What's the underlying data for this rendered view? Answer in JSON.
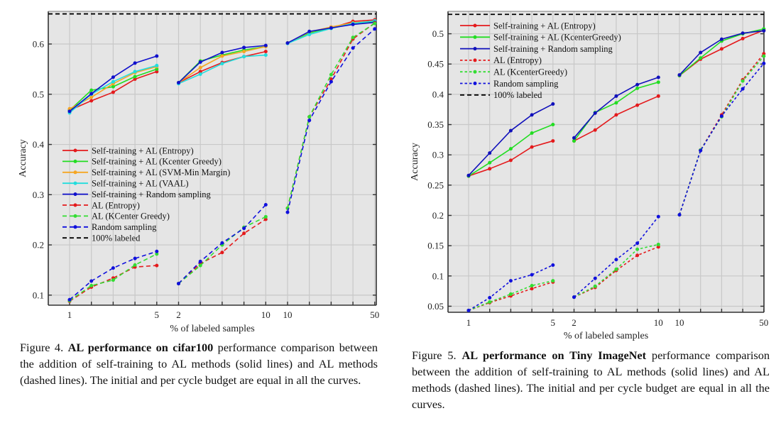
{
  "figures": [
    {
      "caption": {
        "prefix": "Figure 4. ",
        "bold": "AL performance on cifar100",
        "rest": " performance comparison between the addition of self-training to AL methods (solid lines) and AL methods (dashed lines).  The initial and per cycle budget are equal in all the curves."
      }
    },
    {
      "caption": {
        "prefix": "Figure 5. ",
        "bold": "AL performance on Tiny ImageNet",
        "rest": " performance comparison between the addition of self-training to AL methods (solid lines) and AL methods (dashed lines).  The initial and per cycle budget are equal in all the curves."
      }
    }
  ],
  "chart_data": [
    {
      "type": "line",
      "title": "AL performance on cifar100",
      "xlabel": "% of labeled samples",
      "ylabel": "Accuracy",
      "ylim": [
        0.08,
        0.665
      ],
      "yticks": [
        0.1,
        0.2,
        0.3,
        0.4,
        0.5,
        0.6
      ],
      "ytick_labels": [
        "0.1",
        "0.2",
        "0.3",
        "0.4",
        "0.5",
        "0.6"
      ],
      "grid": true,
      "legend_position": "center-left",
      "segments": [
        {
          "x": [
            1,
            2,
            3,
            4,
            5
          ],
          "tick_labels": [
            "1",
            "",
            "",
            "",
            "5"
          ]
        },
        {
          "x": [
            2,
            4,
            6,
            8,
            10
          ],
          "tick_labels": [
            "2",
            "",
            "",
            "",
            "10"
          ]
        },
        {
          "x": [
            10,
            20,
            30,
            40,
            50
          ],
          "tick_labels": [
            "10",
            "",
            "",
            "",
            "50"
          ]
        }
      ],
      "reference_line": {
        "name": "100% labeled",
        "value": 0.66,
        "color": "#000000",
        "style": "dashed"
      },
      "series": [
        {
          "name": "Self-training + AL (Entropy)",
          "color": "#e41a1c",
          "style": "solid",
          "values": [
            [
              0.468,
              0.487,
              0.504,
              0.53,
              0.545
            ],
            [
              0.523,
              0.545,
              0.563,
              0.575,
              0.585
            ],
            [
              0.602,
              0.623,
              0.632,
              0.645,
              0.648
            ]
          ]
        },
        {
          "name": "Self-training + AL (Kcenter Greedy)",
          "color": "#22dd22",
          "style": "solid",
          "values": [
            [
              0.468,
              0.508,
              0.515,
              0.535,
              0.55
            ],
            [
              0.523,
              0.566,
              0.578,
              0.588,
              0.595
            ],
            [
              0.602,
              0.622,
              0.633,
              0.64,
              0.645
            ]
          ]
        },
        {
          "name": "Self-training + AL (SVM-Min Margin)",
          "color": "#f5a623",
          "style": "solid",
          "values": [
            [
              0.471,
              0.494,
              0.521,
              0.543,
              0.555
            ],
            [
              0.523,
              0.553,
              0.576,
              0.585,
              0.595
            ],
            [
              0.602,
              0.624,
              0.634,
              0.642,
              0.646
            ]
          ]
        },
        {
          "name": "Self-training + AL (VAAL)",
          "color": "#22dddd",
          "style": "solid",
          "values": [
            [
              0.463,
              0.5,
              0.525,
              0.545,
              0.557
            ],
            [
              0.521,
              0.54,
              0.561,
              0.575,
              0.578
            ],
            [
              0.601,
              0.619,
              0.631,
              0.641,
              0.646
            ]
          ]
        },
        {
          "name": "Self-training + Random sampling",
          "color": "#1010cc",
          "style": "solid",
          "values": [
            [
              0.466,
              0.501,
              0.534,
              0.562,
              0.576
            ],
            [
              0.523,
              0.564,
              0.583,
              0.593,
              0.597
            ],
            [
              0.602,
              0.625,
              0.632,
              0.639,
              0.643
            ]
          ]
        },
        {
          "name": "AL (Entropy)",
          "color": "#e41a1c",
          "style": "dashed",
          "values": [
            [
              0.088,
              0.116,
              0.134,
              0.156,
              0.159
            ],
            [
              0.123,
              0.163,
              0.185,
              0.223,
              0.251
            ],
            [
              0.273,
              0.455,
              0.53,
              0.61,
              0.642
            ]
          ]
        },
        {
          "name": "AL (KCenter Greedy)",
          "color": "#33dd33",
          "style": "dashed",
          "values": [
            [
              0.089,
              0.119,
              0.13,
              0.16,
              0.182
            ],
            [
              0.123,
              0.159,
              0.2,
              0.235,
              0.256
            ],
            [
              0.273,
              0.455,
              0.539,
              0.613,
              0.641
            ]
          ]
        },
        {
          "name": "Random sampling",
          "color": "#1010dd",
          "style": "dashed",
          "values": [
            [
              0.091,
              0.128,
              0.154,
              0.173,
              0.187
            ],
            [
              0.123,
              0.167,
              0.204,
              0.233,
              0.28
            ],
            [
              0.265,
              0.448,
              0.525,
              0.592,
              0.63
            ]
          ]
        }
      ]
    },
    {
      "type": "line",
      "title": "AL performance on Tiny ImageNet",
      "xlabel": "% of labeled samples",
      "ylabel": "Accuracy",
      "ylim": [
        0.04,
        0.537
      ],
      "yticks": [
        0.05,
        0.1,
        0.15,
        0.2,
        0.25,
        0.3,
        0.35,
        0.4,
        0.45,
        0.5
      ],
      "ytick_labels": [
        "0.05",
        "0.1",
        "0.15",
        "0.2",
        "0.25",
        "0.3",
        "0.35",
        "0.4",
        "0.45",
        "0.5"
      ],
      "grid": true,
      "legend_position": "top-left",
      "segments": [
        {
          "x": [
            1,
            2,
            3,
            4,
            5
          ],
          "tick_labels": [
            "1",
            "",
            "",
            "",
            "5"
          ]
        },
        {
          "x": [
            2,
            4,
            6,
            8,
            10
          ],
          "tick_labels": [
            "2",
            "",
            "",
            "",
            "10"
          ]
        },
        {
          "x": [
            10,
            20,
            30,
            40,
            50
          ],
          "tick_labels": [
            "10",
            "",
            "",
            "",
            "50"
          ]
        }
      ],
      "reference_line": {
        "name": "100% labeled",
        "value": 0.532,
        "color": "#000000",
        "style": "dashed"
      },
      "series": [
        {
          "name": "Self-training + AL (Entropy)",
          "color": "#e41a1c",
          "style": "solid",
          "values": [
            [
              0.265,
              0.277,
              0.291,
              0.313,
              0.323
            ],
            [
              0.323,
              0.341,
              0.366,
              0.382,
              0.397
            ],
            [
              0.431,
              0.458,
              0.475,
              0.492,
              0.506
            ]
          ]
        },
        {
          "name": "Self-training + AL (KcenterGreedy)",
          "color": "#22dd22",
          "style": "solid",
          "values": [
            [
              0.265,
              0.287,
              0.31,
              0.336,
              0.35
            ],
            [
              0.323,
              0.37,
              0.386,
              0.41,
              0.42
            ],
            [
              0.431,
              0.46,
              0.488,
              0.5,
              0.508
            ]
          ]
        },
        {
          "name": "Self-training + Random sampling",
          "color": "#1010bb",
          "style": "solid",
          "values": [
            [
              0.266,
              0.303,
              0.34,
              0.366,
              0.384
            ],
            [
              0.328,
              0.369,
              0.397,
              0.416,
              0.428
            ],
            [
              0.432,
              0.469,
              0.491,
              0.501,
              0.505
            ]
          ]
        },
        {
          "name": "AL (Entropy)",
          "color": "#e41a1c",
          "style": "dotted",
          "values": [
            [
              0.043,
              0.056,
              0.067,
              0.079,
              0.09
            ],
            [
              0.065,
              0.081,
              0.109,
              0.134,
              0.148
            ],
            [
              0.201,
              0.308,
              0.366,
              0.424,
              0.467
            ]
          ]
        },
        {
          "name": "AL (KcenterGreedy)",
          "color": "#33dd33",
          "style": "dotted",
          "values": [
            [
              0.043,
              0.057,
              0.07,
              0.084,
              0.092
            ],
            [
              0.065,
              0.083,
              0.111,
              0.144,
              0.152
            ],
            [
              0.201,
              0.308,
              0.363,
              0.422,
              0.463
            ]
          ]
        },
        {
          "name": "Random sampling",
          "color": "#1010dd",
          "style": "dotted",
          "values": [
            [
              0.043,
              0.064,
              0.092,
              0.102,
              0.118
            ],
            [
              0.065,
              0.096,
              0.127,
              0.154,
              0.198
            ],
            [
              0.201,
              0.307,
              0.364,
              0.409,
              0.451
            ]
          ]
        }
      ]
    }
  ]
}
